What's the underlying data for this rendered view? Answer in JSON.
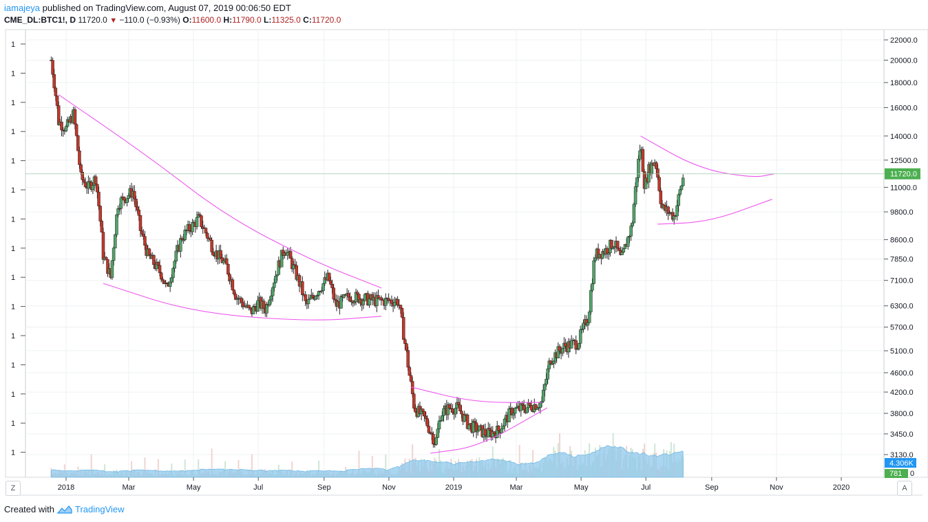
{
  "header": {
    "author": "iamajeya",
    "published_text": "published on TradingView.com, August 07, 2019 00:06:50 EDT",
    "symbol": "CME_DL:BTC1!, D",
    "last": "11720.0",
    "change": "−110.0 (−0.93%)",
    "o_label": "O:",
    "o": "11600.0",
    "h_label": "H:",
    "h": "11790.0",
    "l_label": "L:",
    "l": "11325.0",
    "c_label": "C:",
    "c": "11720.0"
  },
  "footer": {
    "created_with": "Created with",
    "brand": "TradingView"
  },
  "buttons": {
    "left": "Z",
    "right": "A"
  },
  "colors": {
    "up": "#53a36a",
    "down": "#c0392b",
    "wick": "#222222",
    "pattern": "#ee55ee",
    "volume_area": "#8fc8ec",
    "grid": "#eef0f3",
    "price_badge": "#4caf50",
    "vol_badge": "#2196f3"
  },
  "chart_data": {
    "type": "candlestick",
    "x_axis_labels": [
      "2018",
      "Mar",
      "May",
      "Jul",
      "Sep",
      "Nov",
      "2019",
      "Mar",
      "May",
      "Jul",
      "Sep",
      "Nov",
      "2020"
    ],
    "y_axis_labels": [
      "22000.0",
      "20000.0",
      "18000.0",
      "16000.0",
      "14000.0",
      "12500.0",
      "11000.0",
      "9800.0",
      "8600.0",
      "7850.0",
      "7100.0",
      "6300.0",
      "5700.0",
      "5100.0",
      "4600.0",
      "4200.0",
      "3800.0",
      "3450.0",
      "3130.0"
    ],
    "y_scale": "log",
    "left_scale_labels": [
      "1",
      "1",
      "1",
      "1",
      "1",
      "1",
      "1",
      "1",
      "1",
      "1",
      "1",
      "1",
      "1",
      "1",
      "1"
    ],
    "last_price_badge": "11720.0",
    "volume_badges": [
      "4.306K",
      "781"
    ],
    "volume_axis_label": "0",
    "price_path": [
      [
        "2017-12-18",
        20000
      ],
      [
        "2017-12-25",
        15000
      ],
      [
        "2018-01-01",
        14500
      ],
      [
        "2018-01-08",
        15500
      ],
      [
        "2018-01-15",
        11500
      ],
      [
        "2018-01-22",
        11000
      ],
      [
        "2018-01-29",
        11500
      ],
      [
        "2018-02-05",
        8000
      ],
      [
        "2018-02-12",
        7200
      ],
      [
        "2018-02-19",
        10200
      ],
      [
        "2018-03-05",
        10800
      ],
      [
        "2018-03-12",
        9000
      ],
      [
        "2018-03-19",
        8000
      ],
      [
        "2018-04-01",
        7300
      ],
      [
        "2018-04-06",
        6800
      ],
      [
        "2018-04-20",
        8700
      ],
      [
        "2018-05-06",
        9500
      ],
      [
        "2018-05-20",
        8200
      ],
      [
        "2018-06-01",
        7600
      ],
      [
        "2018-06-10",
        6600
      ],
      [
        "2018-06-24",
        6100
      ],
      [
        "2018-07-01",
        6400
      ],
      [
        "2018-07-08",
        6200
      ],
      [
        "2018-07-20",
        7600
      ],
      [
        "2018-07-26",
        8300
      ],
      [
        "2018-08-10",
        6900
      ],
      [
        "2018-08-15",
        6300
      ],
      [
        "2018-09-05",
        7200
      ],
      [
        "2018-09-12",
        6300
      ],
      [
        "2018-09-25",
        6600
      ],
      [
        "2018-10-10",
        6500
      ],
      [
        "2018-10-20",
        6450
      ],
      [
        "2018-11-10",
        6450
      ],
      [
        "2018-11-15",
        5500
      ],
      [
        "2018-11-20",
        4600
      ],
      [
        "2018-11-25",
        3900
      ],
      [
        "2018-12-05",
        3700
      ],
      [
        "2018-12-15",
        3300
      ],
      [
        "2018-12-20",
        3800
      ],
      [
        "2018-12-28",
        3900
      ],
      [
        "2019-01-05",
        3900
      ],
      [
        "2019-01-15",
        3600
      ],
      [
        "2019-02-01",
        3450
      ],
      [
        "2019-02-12",
        3500
      ],
      [
        "2019-02-25",
        3850
      ],
      [
        "2019-03-10",
        3900
      ],
      [
        "2019-03-25",
        4000
      ],
      [
        "2019-04-02",
        4900
      ],
      [
        "2019-04-15",
        5200
      ],
      [
        "2019-04-28",
        5300
      ],
      [
        "2019-05-08",
        6000
      ],
      [
        "2019-05-14",
        8000
      ],
      [
        "2019-05-25",
        8200
      ],
      [
        "2019-06-01",
        8500
      ],
      [
        "2019-06-08",
        7800
      ],
      [
        "2019-06-18",
        9200
      ],
      [
        "2019-06-26",
        13500
      ],
      [
        "2019-06-30",
        11000
      ],
      [
        "2019-07-04",
        12000
      ],
      [
        "2019-07-10",
        12500
      ],
      [
        "2019-07-16",
        10000
      ],
      [
        "2019-07-22",
        9800
      ],
      [
        "2019-07-28",
        9600
      ],
      [
        "2019-08-01",
        10500
      ],
      [
        "2019-08-06",
        11720
      ]
    ],
    "pattern_curves": [
      [
        [
          "2017-12-25",
          17000
        ],
        [
          "2018-03-20",
          12700
        ],
        [
          "2018-06-01",
          9600
        ],
        [
          "2018-08-20",
          7800
        ],
        [
          "2018-10-25",
          6850
        ]
      ],
      [
        [
          "2018-02-05",
          7000
        ],
        [
          "2018-05-01",
          6100
        ],
        [
          "2018-08-20",
          5850
        ],
        [
          "2018-10-25",
          6000
        ]
      ],
      [
        [
          "2018-11-22",
          4300
        ],
        [
          "2019-01-20",
          4000
        ],
        [
          "2019-03-25",
          4000
        ]
      ],
      [
        [
          "2018-12-10",
          3150
        ],
        [
          "2019-01-25",
          3250
        ],
        [
          "2019-03-30",
          3900
        ]
      ],
      [
        [
          "2019-06-26",
          14000
        ],
        [
          "2019-08-20",
          12000
        ],
        [
          "2019-10-10",
          11500
        ],
        [
          "2019-10-30",
          11720
        ]
      ],
      [
        [
          "2019-07-12",
          9250
        ],
        [
          "2019-08-30",
          9350
        ],
        [
          "2019-10-28",
          10400
        ]
      ]
    ]
  }
}
